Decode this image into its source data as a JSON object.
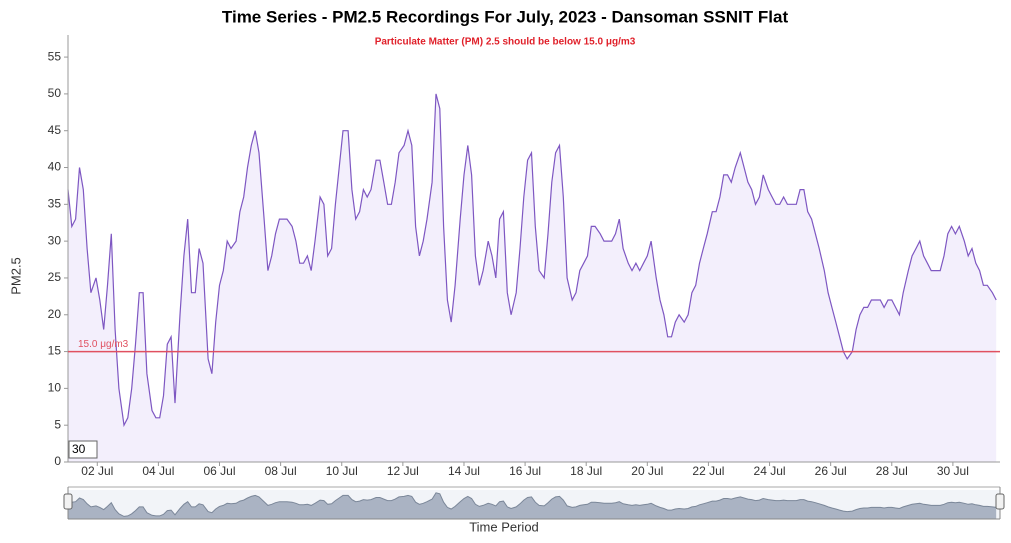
{
  "chart_data": {
    "type": "line",
    "title": "Time Series - PM2.5 Recordings For July, 2023 - Dansoman SSNIT Flat",
    "subtitle": "Particulate Matter (PM) 2.5 should be below 15.0 μg/m3",
    "y_label": "PM2.5",
    "x_label": "Time Period",
    "zoom_label": "30",
    "color": "#7e57c2",
    "fill_color": "#f3effc",
    "threshold": {
      "value": 15,
      "label": "15.0 μg/m3",
      "color": "#e05060"
    },
    "ylim": [
      0,
      58
    ],
    "yticks": [
      0,
      5,
      10,
      15,
      20,
      25,
      30,
      35,
      40,
      45,
      50,
      55
    ],
    "xlim": [
      1,
      733
    ],
    "xticks": [
      {
        "value": 24,
        "label": "02 Jul"
      },
      {
        "value": 72,
        "label": "04 Jul"
      },
      {
        "value": 120,
        "label": "06 Jul"
      },
      {
        "value": 168,
        "label": "08 Jul"
      },
      {
        "value": 216,
        "label": "10 Jul"
      },
      {
        "value": 264,
        "label": "12 Jul"
      },
      {
        "value": 312,
        "label": "14 Jul"
      },
      {
        "value": 360,
        "label": "16 Jul"
      },
      {
        "value": 408,
        "label": "18 Jul"
      },
      {
        "value": 456,
        "label": "20 Jul"
      },
      {
        "value": 504,
        "label": "22 Jul"
      },
      {
        "value": 552,
        "label": "24 Jul"
      },
      {
        "value": 600,
        "label": "26 Jul"
      },
      {
        "value": 648,
        "label": "28 Jul"
      },
      {
        "value": 696,
        "label": "30 Jul"
      }
    ],
    "x": [
      1,
      4,
      7,
      10,
      13,
      16,
      19,
      23,
      26,
      29,
      32,
      35,
      38,
      41,
      45,
      48,
      51,
      54,
      57,
      60,
      63,
      67,
      70,
      73,
      76,
      79,
      82,
      85,
      89,
      92,
      95,
      98,
      101,
      104,
      107,
      111,
      114,
      117,
      120,
      123,
      126,
      129,
      133,
      136,
      139,
      142,
      145,
      148,
      151,
      155,
      158,
      161,
      164,
      167,
      170,
      173,
      177,
      180,
      183,
      186,
      189,
      192,
      195,
      199,
      202,
      205,
      208,
      211,
      214,
      217,
      221,
      224,
      227,
      230,
      233,
      236,
      239,
      243,
      246,
      249,
      252,
      255,
      258,
      261,
      265,
      268,
      271,
      274,
      277,
      280,
      283,
      287,
      290,
      293,
      296,
      299,
      302,
      305,
      309,
      312,
      315,
      318,
      321,
      324,
      327,
      331,
      334,
      337,
      340,
      343,
      346,
      349,
      353,
      356,
      359,
      362,
      365,
      368,
      371,
      375,
      378,
      381,
      384,
      387,
      390,
      393,
      397,
      400,
      403,
      406,
      409,
      412,
      415,
      419,
      422,
      425,
      428,
      431,
      434,
      437,
      441,
      444,
      447,
      450,
      453,
      456,
      459,
      463,
      466,
      469,
      472,
      475,
      478,
      481,
      485,
      488,
      491,
      494,
      497,
      500,
      503,
      507,
      510,
      513,
      516,
      519,
      522,
      525,
      529,
      532,
      535,
      538,
      541,
      544,
      547,
      551,
      554,
      557,
      560,
      563,
      566,
      569,
      573,
      576,
      579,
      582,
      585,
      588,
      591,
      595,
      598,
      601,
      604,
      607,
      610,
      613,
      617,
      620,
      623,
      626,
      629,
      632,
      635,
      639,
      642,
      645,
      648,
      651,
      654,
      657,
      661,
      664,
      667,
      670,
      673,
      676,
      679,
      683,
      686,
      689,
      692,
      695,
      698,
      701,
      705,
      708,
      711,
      714,
      717,
      720,
      723,
      727,
      730
    ],
    "values": [
      37,
      32,
      33,
      40,
      37,
      29,
      23,
      25,
      22,
      18,
      24,
      31,
      18,
      10,
      5,
      6,
      10,
      16,
      23,
      23,
      12,
      7,
      6,
      6,
      9,
      16,
      17,
      8,
      20,
      28,
      33,
      23,
      23,
      29,
      27,
      14,
      12,
      19,
      24,
      26,
      30,
      29,
      30,
      34,
      36,
      40,
      43,
      45,
      42,
      33,
      26,
      28,
      31,
      33,
      33,
      33,
      32,
      30,
      27,
      27,
      28,
      26,
      30,
      36,
      35,
      28,
      29,
      35,
      40,
      45,
      45,
      37,
      33,
      34,
      37,
      36,
      37,
      41,
      41,
      38,
      35,
      35,
      38,
      42,
      43,
      45,
      43,
      32,
      28,
      30,
      33,
      38,
      50,
      48,
      32,
      22,
      19,
      24,
      33,
      39,
      43,
      39,
      28,
      24,
      26,
      30,
      28,
      25,
      33,
      34,
      23,
      20,
      23,
      29,
      36,
      41,
      42,
      32,
      26,
      25,
      31,
      38,
      42,
      43,
      36,
      25,
      22,
      23,
      26,
      27,
      28,
      32,
      32,
      31,
      30,
      30,
      30,
      31,
      33,
      29,
      27,
      26,
      27,
      26,
      27,
      28,
      30,
      25,
      22,
      20,
      17,
      17,
      19,
      20,
      19,
      20,
      23,
      24,
      27,
      29,
      31,
      34,
      34,
      36,
      39,
      39,
      38,
      40,
      42,
      40,
      38,
      37,
      35,
      36,
      39,
      37,
      36,
      35,
      35,
      36,
      35,
      35,
      35,
      37,
      37,
      34,
      33,
      31,
      29,
      26,
      23,
      21,
      19,
      17,
      15,
      14,
      15,
      18,
      20,
      21,
      21,
      22,
      22,
      22,
      21,
      22,
      22,
      21,
      20,
      23,
      26,
      28,
      29,
      30,
      28,
      27,
      26,
      26,
      26,
      28,
      31,
      32,
      31,
      32,
      30,
      28,
      29,
      27,
      26,
      24,
      24,
      23,
      22
    ]
  }
}
